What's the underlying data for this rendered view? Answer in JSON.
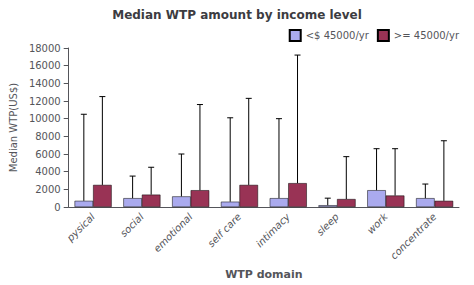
{
  "chart_data": {
    "type": "bar",
    "title": "Median WTP amount by income level",
    "xlabel": "WTP domain",
    "ylabel": "Median WTP(US$)",
    "categories": [
      "pysical",
      "social",
      "emotional",
      "self care",
      "intimacy",
      "sleep",
      "work",
      "concentrate"
    ],
    "series": [
      {
        "name": "<$ 45000/yr",
        "color": "#aaaaee",
        "values": [
          700,
          1000,
          1200,
          600,
          1000,
          200,
          1900,
          1000
        ],
        "err_high": [
          9800,
          2500,
          4800,
          9500,
          9000,
          800,
          4700,
          1600
        ]
      },
      {
        "name": ">= 45000/yr",
        "color": "#993355",
        "values": [
          2500,
          1400,
          1900,
          2500,
          2700,
          900,
          1300,
          700
        ],
        "err_high": [
          10000,
          3100,
          9700,
          9800,
          14500,
          4800,
          5300,
          6800
        ]
      }
    ],
    "ylim": [
      0,
      18000
    ],
    "yticks": [
      0,
      2000,
      4000,
      6000,
      8000,
      10000,
      12000,
      14000,
      16000,
      18000
    ],
    "grid": false,
    "legend": "upper right"
  }
}
